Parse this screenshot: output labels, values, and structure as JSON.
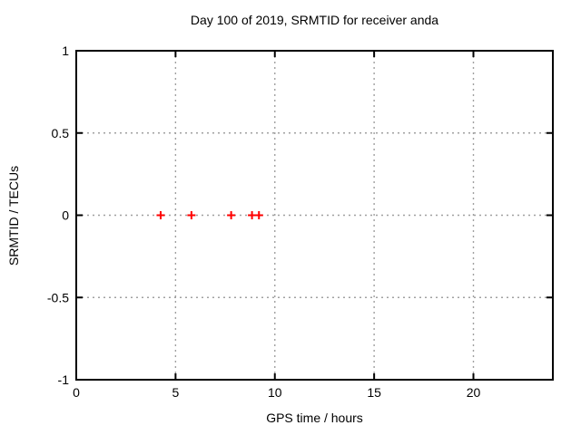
{
  "chart_data": {
    "type": "scatter",
    "title": "Day 100 of 2019, SRMTID for receiver anda",
    "xlabel": "GPS time / hours",
    "ylabel": "SRMTID / TECUs",
    "xlim": [
      0,
      24
    ],
    "ylim": [
      -1,
      1
    ],
    "xticks": [
      0,
      5,
      10,
      15,
      20
    ],
    "yticks": [
      -1,
      -0.5,
      0,
      0.5,
      1
    ],
    "grid": true,
    "legend": false,
    "series": [
      {
        "name": "SRMTID",
        "marker": "plus",
        "color": "#ff0000",
        "points": [
          {
            "x": 4.25,
            "y": 0
          },
          {
            "x": 5.8,
            "y": 0
          },
          {
            "x": 7.8,
            "y": 0
          },
          {
            "x": 8.85,
            "y": 0
          },
          {
            "x": 9.2,
            "y": 0
          }
        ]
      }
    ],
    "colors": {
      "background": "#ffffff",
      "axis": "#000000",
      "grid": "#a0a0a0",
      "text": "#000000"
    }
  }
}
